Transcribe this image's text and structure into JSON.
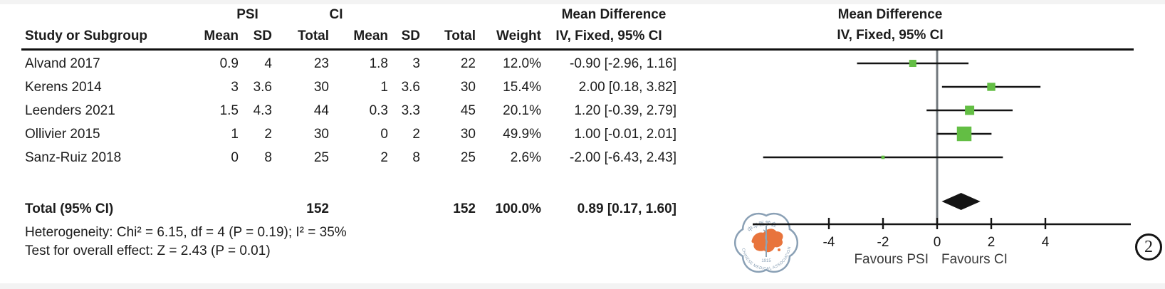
{
  "figure": {
    "table": {
      "group_headers": {
        "psi": "PSI",
        "ci": "CI"
      },
      "md_title": "Mean Difference",
      "col_headers": {
        "study": "Study or Subgroup",
        "mean": "Mean",
        "sd": "SD",
        "total": "Total",
        "mean2": "Mean",
        "sd2": "SD",
        "total2": "Total",
        "weight": "Weight",
        "md": "IV, Fixed, 95% CI"
      }
    },
    "plot_header": {
      "title": "Mean Difference",
      "subtitle": "IV, Fixed, 95% CI"
    },
    "studies": [
      {
        "name": "Alvand 2017",
        "psi_mean": "0.9",
        "psi_sd": "4",
        "psi_total": "23",
        "ci_mean": "1.8",
        "ci_sd": "3",
        "ci_total": "22",
        "weight": "12.0%",
        "md_label": "-0.90 [-2.96, 1.16]"
      },
      {
        "name": "Kerens 2014",
        "psi_mean": "3",
        "psi_sd": "3.6",
        "psi_total": "30",
        "ci_mean": "1",
        "ci_sd": "3.6",
        "ci_total": "30",
        "weight": "15.4%",
        "md_label": "2.00 [0.18, 3.82]"
      },
      {
        "name": "Leenders 2021",
        "psi_mean": "1.5",
        "psi_sd": "4.3",
        "psi_total": "44",
        "ci_mean": "0.3",
        "ci_sd": "3.3",
        "ci_total": "45",
        "weight": "20.1%",
        "md_label": "1.20 [-0.39, 2.79]"
      },
      {
        "name": "Ollivier 2015",
        "psi_mean": "1",
        "psi_sd": "2",
        "psi_total": "30",
        "ci_mean": "0",
        "ci_sd": "2",
        "ci_total": "30",
        "weight": "49.9%",
        "md_label": "1.00 [-0.01, 2.01]"
      },
      {
        "name": "Sanz-Ruiz 2018",
        "psi_mean": "0",
        "psi_sd": "8",
        "psi_total": "25",
        "ci_mean": "2",
        "ci_sd": "8",
        "ci_total": "25",
        "weight": "2.6%",
        "md_label": "-2.00 [-6.43, 2.43]"
      }
    ],
    "total": {
      "label": "Total (95% CI)",
      "psi_total": "152",
      "ci_total": "152",
      "weight": "100.0%",
      "md_label": "0.89 [0.17, 1.60]"
    },
    "footnotes": {
      "heterogeneity": "Heterogeneity: Chi² = 6.15, df = 4 (P = 0.19); I² = 35%",
      "overall": "Test for overall effect: Z = 2.43 (P = 0.01)"
    },
    "axis_labels": {
      "favours_left": "Favours PSI",
      "favours_right": "Favours CI"
    },
    "panel_number": "2",
    "watermark": {
      "top_text": "中华医学会",
      "bottom_text": "CHINESE MEDICAL ASSOCIATION",
      "year": "1915"
    },
    "colors": {
      "marker_green": "#63be44",
      "diamond_black": "#141414",
      "watermark_blue": "#8aa0b5",
      "watermark_orange": "#e8743c",
      "zero_line_gray": "#72787d"
    }
  },
  "chart_data": {
    "type": "scatter",
    "subtype": "forest_plot_mean_difference_fixed_effects",
    "title": "Mean Difference IV, Fixed, 95% CI",
    "categories": [
      "Alvand 2017",
      "Kerens 2014",
      "Leenders 2021",
      "Ollivier 2015",
      "Sanz-Ruiz 2018"
    ],
    "series": [
      {
        "name": "PSI",
        "mean": [
          0.9,
          3,
          1.5,
          1,
          0
        ],
        "sd": [
          4,
          3.6,
          4.3,
          2,
          8
        ],
        "total": [
          23,
          30,
          44,
          30,
          25
        ]
      },
      {
        "name": "CI",
        "mean": [
          1.8,
          1,
          0.3,
          0,
          2
        ],
        "sd": [
          3,
          3.6,
          3.3,
          2,
          8
        ],
        "total": [
          22,
          30,
          45,
          30,
          25
        ]
      }
    ],
    "effects": {
      "md": [
        -0.9,
        2.0,
        1.2,
        1.0,
        -2.0
      ],
      "ci_low": [
        -2.96,
        0.18,
        -0.39,
        -0.01,
        -6.43
      ],
      "ci_high": [
        1.16,
        3.82,
        2.79,
        2.01,
        2.43
      ],
      "weight_pct": [
        12.0,
        15.4,
        20.1,
        49.9,
        2.6
      ]
    },
    "total": {
      "md": 0.89,
      "ci_low": 0.17,
      "ci_high": 1.6,
      "n_psi": 152,
      "n_ci": 152,
      "weight_pct": 100.0
    },
    "xticks": [
      -4,
      -2,
      0,
      2,
      4
    ],
    "xlim": [
      -6.8,
      7.2
    ],
    "grid": false,
    "xlabel_left": "Favours PSI",
    "xlabel_right": "Favours CI",
    "heterogeneity": {
      "chi2": 6.15,
      "df": 4,
      "p": 0.19,
      "i2_pct": 35
    },
    "overall_effect": {
      "z": 2.43,
      "p": 0.01
    }
  }
}
